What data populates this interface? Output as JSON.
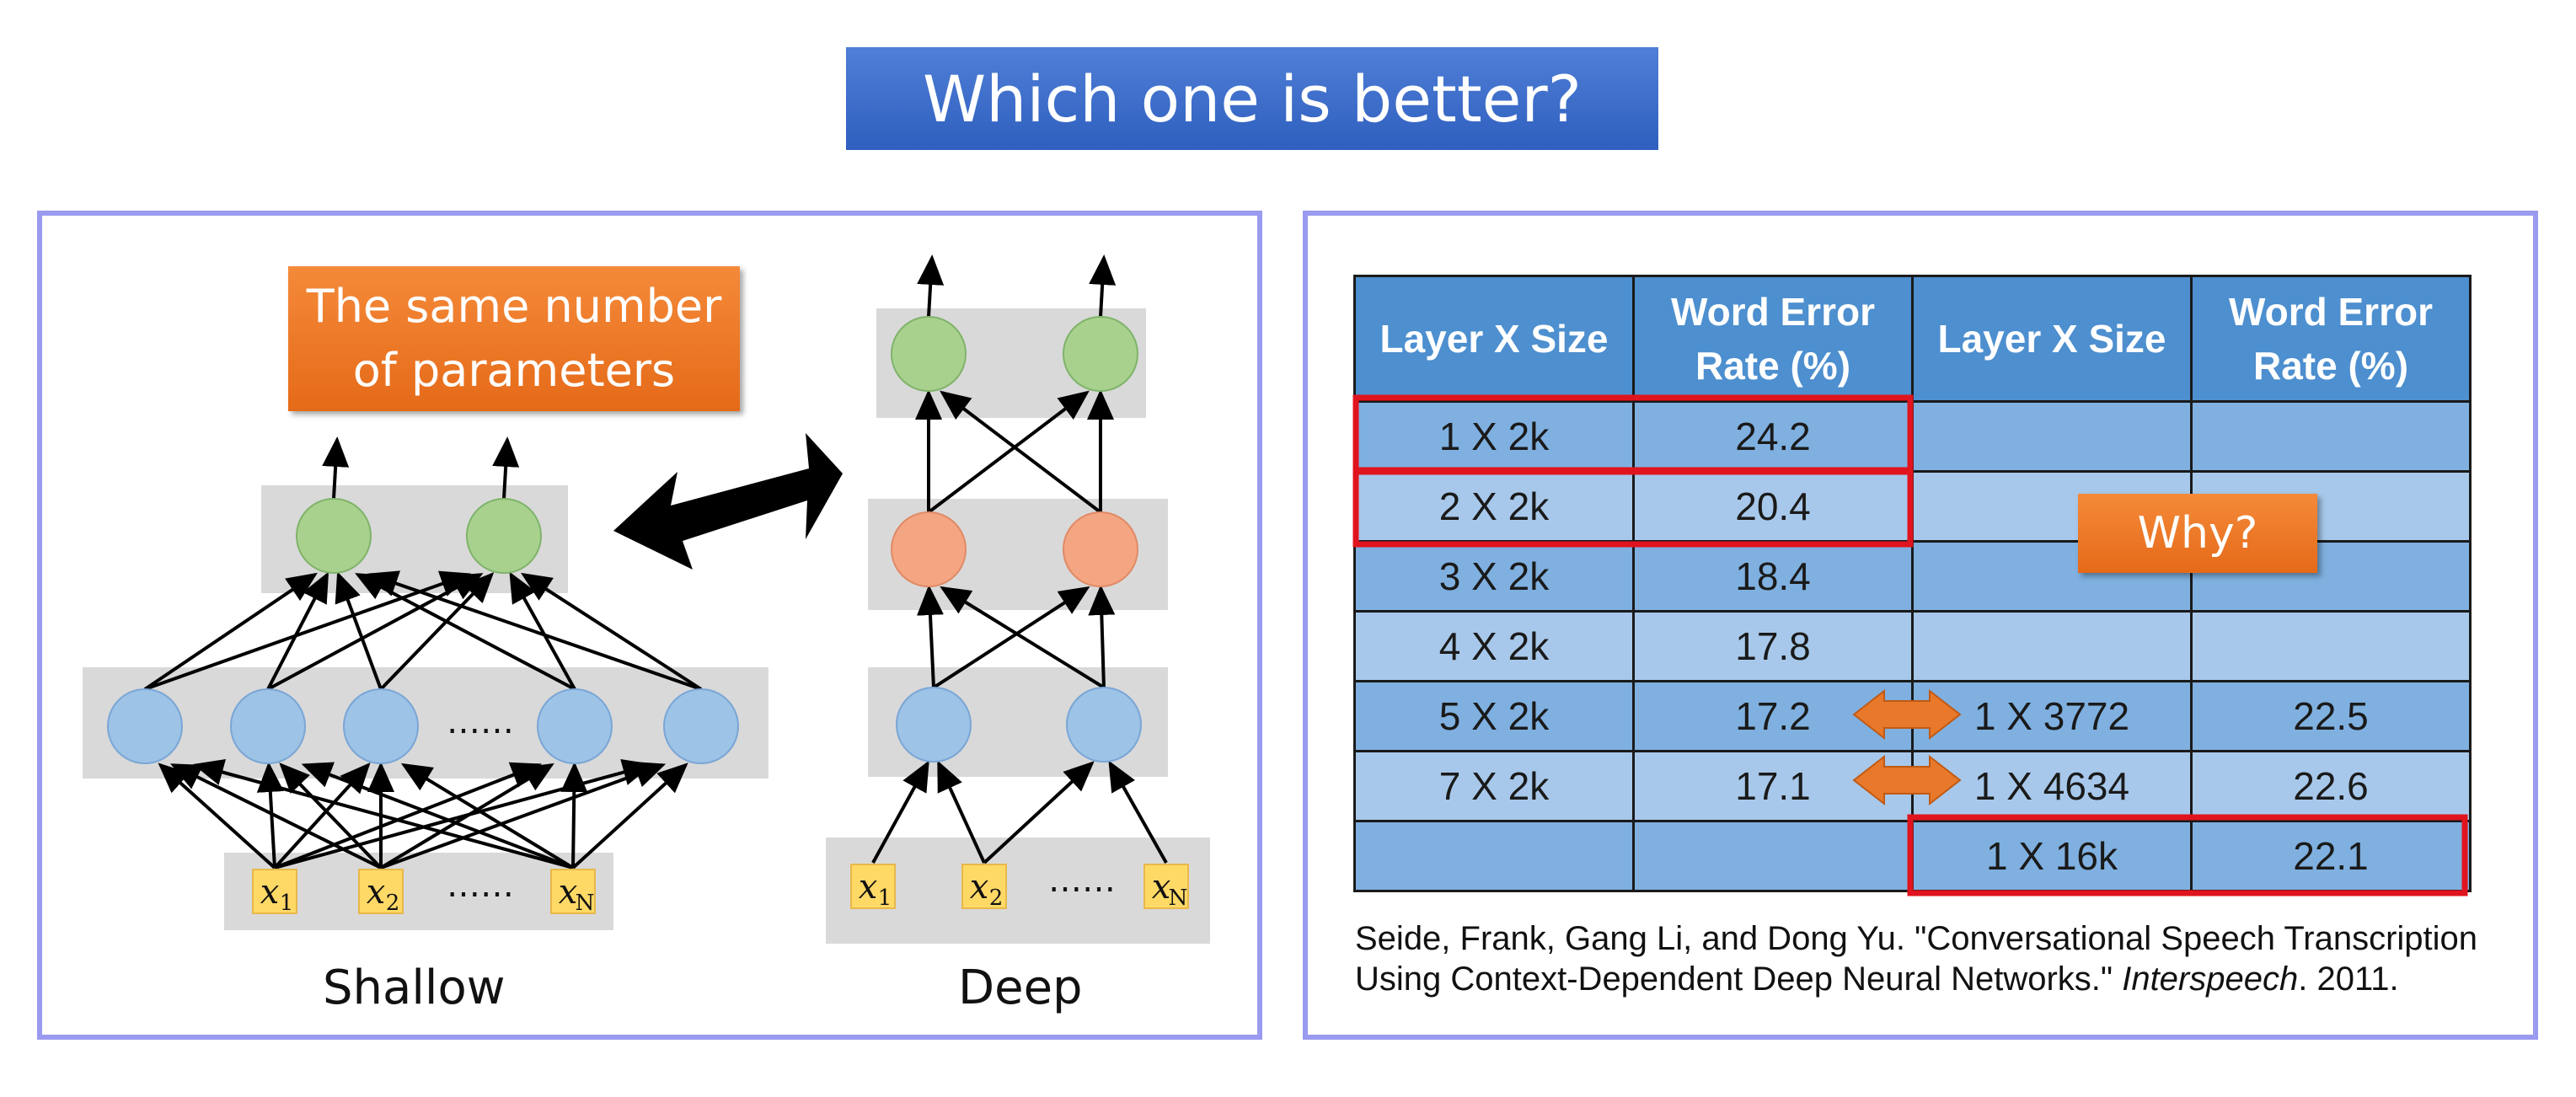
{
  "title": "Which one is better?",
  "left_panel": {
    "callout": "The same number\nof parameters",
    "shallow_caption": "Shallow",
    "deep_caption": "Deep",
    "shallow_inputs": [
      "x1",
      "x2",
      "……",
      "xN"
    ],
    "shallow_hidden_ellipsis": "……",
    "deep_inputs": [
      "x1",
      "x2",
      "……",
      "xN"
    ]
  },
  "table": {
    "headers": [
      "Layer X Size",
      "Word Error Rate (%)",
      "Layer X Size",
      "Word Error Rate (%)"
    ],
    "rows": [
      [
        "1 X 2k",
        "24.2",
        "",
        ""
      ],
      [
        "2 X 2k",
        "20.4",
        "",
        ""
      ],
      [
        "3 X 2k",
        "18.4",
        "",
        ""
      ],
      [
        "4 X 2k",
        "17.8",
        "",
        ""
      ],
      [
        "5 X 2k",
        "17.2",
        "1 X 3772",
        "22.5"
      ],
      [
        "7 X 2k",
        "17.1",
        "1 X 4634",
        "22.6"
      ],
      [
        "",
        "",
        "1 X 16k",
        "22.1"
      ]
    ],
    "why_callout": "Why?"
  },
  "citation": {
    "part1": "Seide, Frank, Gang Li, and Dong Yu. \"Conversational Speech Transcription Using Context-Dependent Deep Neural Networks.\" ",
    "journal": "Interspeech",
    "part2": ". 2011."
  },
  "colors": {
    "title_bg": "#3566c9",
    "panel_border": "#9a9af0",
    "callout_orange": "#ec7a28",
    "node_blue": "#9dc3e6",
    "node_orange": "#f4a582",
    "node_green": "#a9d18e",
    "layer_gray": "#d9d9d9",
    "input_yellow": "#ffd966",
    "highlight_red": "#e0141e"
  }
}
